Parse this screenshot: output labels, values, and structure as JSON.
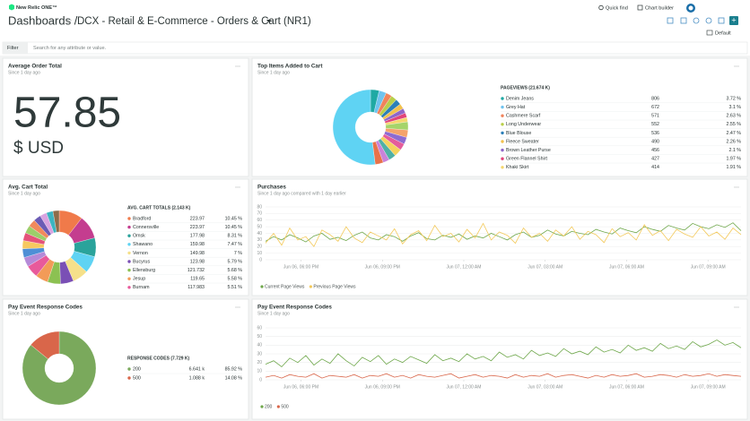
{
  "header": {
    "logo": "New Relic ONE™",
    "breadcrumb": "Dashboards /",
    "title": "DCX - Retail & E-Commerce - Orders & Cart (NR1)",
    "quick_find": "Quick find",
    "chart_builder": "Chart builder",
    "time_picker": "Default"
  },
  "filter": {
    "button": "Filter",
    "placeholder": "Search for any attribute or value."
  },
  "widgets": [
    {
      "type": "billboard",
      "title": "Average Order Total",
      "subtitle": "Since 1 day ago",
      "value": 57.85,
      "unit": "$ USD"
    },
    {
      "type": "pie",
      "title": "Top Items Added to Cart",
      "subtitle": "Since 1 day ago",
      "table_header": "PAGEVIEWS (21.674 K)",
      "rows": [
        {
          "name": "Denim Jeans",
          "color": "#1fa9a4",
          "value": 806,
          "percent": 3.72,
          "percent_label": "3.72 %"
        },
        {
          "name": "Grey Hat",
          "color": "#6fc3ee",
          "value": 672,
          "percent": 3.1,
          "percent_label": "3.1 %"
        },
        {
          "name": "Cashmere Scarf",
          "color": "#f0845c",
          "value": 571,
          "percent": 2.63,
          "percent_label": "2.63 %"
        },
        {
          "name": "Long Underwear",
          "color": "#b9cf4a",
          "value": 552,
          "percent": 2.55,
          "percent_label": "2.55 %"
        },
        {
          "name": "Blue Blouse",
          "color": "#2c7fb8",
          "value": 536,
          "percent": 2.47,
          "percent_label": "2.47 %"
        },
        {
          "name": "Fleece Sweater",
          "color": "#f2c14e",
          "value": 490,
          "percent": 2.26,
          "percent_label": "2.26 %"
        },
        {
          "name": "Brown Leather Purse",
          "color": "#8e67c9",
          "value": 456,
          "percent": 2.1,
          "percent_label": "2.1 %"
        },
        {
          "name": "Green Flannel Shirt",
          "color": "#e0457b",
          "value": 427,
          "percent": 1.97,
          "percent_label": "1.97 %"
        },
        {
          "name": "Khaki Skirt",
          "color": "#f5d76e",
          "value": 414,
          "percent": 1.91,
          "percent_label": "1.91 %"
        }
      ],
      "other_slices": [
        {
          "value": 3.5,
          "color": "#a5d46a"
        },
        {
          "value": 3.2,
          "color": "#f5a36b"
        },
        {
          "value": 3.0,
          "color": "#8d6bd1"
        },
        {
          "value": 2.9,
          "color": "#e45d9b"
        },
        {
          "value": 3.3,
          "color": "#f4d35e"
        },
        {
          "value": 3.1,
          "color": "#4fb0a5"
        },
        {
          "value": 2.8,
          "color": "#c983d9"
        },
        {
          "value": 3.49,
          "color": "#e8724a"
        },
        {
          "value": 52,
          "color": "#5fd3f3"
        }
      ]
    },
    {
      "type": "pie",
      "title": "Avg. Cart Total",
      "subtitle": "Since 1 day ago",
      "table_header": "AVG. CART TOTALS (2.143 K)",
      "rows": [
        {
          "name": "Bradford",
          "color": "#f07a4a",
          "value": 223.97,
          "percent": 10.45,
          "percent_label": "10.45 %"
        },
        {
          "name": "Connersville",
          "color": "#c43d8f",
          "value": 223.97,
          "percent": 10.45,
          "percent_label": "10.45 %"
        },
        {
          "name": "Omsk",
          "color": "#2aa39b",
          "value": 177.98,
          "percent": 8.31,
          "percent_label": "8.31 %"
        },
        {
          "name": "Shawano",
          "color": "#5fd3f3",
          "value": 159.98,
          "percent": 7.47,
          "percent_label": "7.47 %"
        },
        {
          "name": "Vernon",
          "color": "#f5e08a",
          "value": 149.98,
          "percent": 7,
          "percent_label": "7 %"
        },
        {
          "name": "Bucyrus",
          "color": "#7a4fb5",
          "value": 123.98,
          "percent": 5.79,
          "percent_label": "5.79 %"
        },
        {
          "name": "Ellensburg",
          "color": "#8cc152",
          "value": 121.732,
          "percent": 5.68,
          "percent_label": "5.68 %"
        },
        {
          "name": "Jesup",
          "color": "#f29b58",
          "value": 119.65,
          "percent": 5.58,
          "percent_label": "5.58 %"
        },
        {
          "name": "Burnam",
          "color": "#e85a9b",
          "value": 117.983,
          "percent": 5.51,
          "percent_label": "5.51 %"
        }
      ],
      "other_slices": [
        {
          "value": 4.2,
          "color": "#b58ad8"
        },
        {
          "value": 3.9,
          "color": "#4e8fd6"
        },
        {
          "value": 3.6,
          "color": "#f6c85f"
        },
        {
          "value": 3.5,
          "color": "#e4537a"
        },
        {
          "value": 3.4,
          "color": "#9ccf6a"
        },
        {
          "value": 3.3,
          "color": "#f08a5d"
        },
        {
          "value": 3.2,
          "color": "#6b5bb5"
        },
        {
          "value": 3.0,
          "color": "#d9a3e0"
        },
        {
          "value": 2.9,
          "color": "#3bb4c1"
        },
        {
          "value": 2.76,
          "color": "#8e6c4a"
        }
      ]
    },
    {
      "type": "line",
      "title": "Purchases",
      "subtitle": "Since 1 day ago compared with 1 day earlier",
      "ylim": [
        0,
        80
      ],
      "yticks": [
        0,
        10,
        20,
        30,
        40,
        50,
        60,
        70,
        80
      ],
      "xlim": [
        0,
        59
      ],
      "xticks": [
        {
          "value": 4.4,
          "label": "Jun 06, 06:00 PM"
        },
        {
          "value": 14.5,
          "label": "Jun 06, 09:00 PM"
        },
        {
          "value": 24.6,
          "label": "Jun 07, 12:00 AM"
        },
        {
          "value": 34.7,
          "label": "Jun 07, 03:00 AM"
        },
        {
          "value": 44.8,
          "label": "Jun 07, 06:00 AM"
        },
        {
          "value": 54.9,
          "label": "Jun 07, 09:00 AM"
        }
      ],
      "series": [
        {
          "name": "Current Page Views",
          "color": "#6ea74a",
          "values": [
            28,
            35,
            30,
            38,
            33,
            27,
            36,
            40,
            31,
            34,
            29,
            37,
            42,
            33,
            30,
            38,
            35,
            28,
            36,
            41,
            32,
            30,
            37,
            34,
            39,
            31,
            36,
            33,
            40,
            35,
            30,
            38,
            42,
            34,
            37,
            45,
            39,
            36,
            43,
            40,
            38,
            46,
            42,
            39,
            48,
            44,
            41,
            50,
            46,
            43,
            52,
            48,
            45,
            55,
            50,
            47,
            53,
            49,
            56,
            44
          ]
        },
        {
          "name": "Previous Page Views",
          "color": "#f3c95a",
          "values": [
            25,
            40,
            22,
            48,
            30,
            35,
            20,
            45,
            38,
            28,
            50,
            33,
            26,
            42,
            36,
            30,
            47,
            24,
            38,
            44,
            29,
            52,
            35,
            40,
            27,
            46,
            33,
            55,
            30,
            42,
            37,
            25,
            48,
            34,
            40,
            28,
            45,
            36,
            50,
            31,
            43,
            38,
            26,
            47,
            35,
            41,
            30,
            53,
            37,
            44,
            29,
            46,
            39,
            34,
            50,
            36,
            42,
            31,
            48,
            38
          ]
        }
      ]
    },
    {
      "type": "pie",
      "title": "Pay Event Response Codes",
      "subtitle": "Since 1 day ago",
      "table_header": "RESPONSE CODES (7.729 K)",
      "rows": [
        {
          "name": "200",
          "color": "#7aa95c",
          "value": 6641,
          "value_label": "6.641 k",
          "percent": 85.92,
          "percent_label": "85.92 %"
        },
        {
          "name": "500",
          "color": "#d9664a",
          "value": 1088,
          "value_label": "1.088 k",
          "percent": 14.08,
          "percent_label": "14.08 %"
        }
      ]
    },
    {
      "type": "line",
      "title": "Pay Event Response Codes",
      "subtitle": "Since 1 day ago",
      "ylim": [
        0,
        60
      ],
      "yticks": [
        0,
        10,
        20,
        30,
        40,
        50,
        60
      ],
      "xlim": [
        0,
        59
      ],
      "xticks": [
        {
          "value": 4.4,
          "label": "Jun 06, 06:00 PM"
        },
        {
          "value": 14.5,
          "label": "Jun 06, 09:00 PM"
        },
        {
          "value": 24.6,
          "label": "Jun 07, 12:00 AM"
        },
        {
          "value": 34.7,
          "label": "Jun 07, 03:00 AM"
        },
        {
          "value": 44.8,
          "label": "Jun 07, 06:00 AM"
        },
        {
          "value": 54.9,
          "label": "Jun 07, 09:00 AM"
        }
      ],
      "series": [
        {
          "name": "200",
          "color": "#6ea74a",
          "values": [
            18,
            22,
            15,
            25,
            20,
            28,
            17,
            24,
            19,
            30,
            22,
            16,
            26,
            21,
            28,
            18,
            24,
            20,
            27,
            23,
            19,
            29,
            22,
            25,
            21,
            30,
            24,
            27,
            22,
            32,
            26,
            29,
            24,
            34,
            28,
            31,
            27,
            36,
            30,
            33,
            29,
            38,
            32,
            35,
            31,
            40,
            34,
            37,
            33,
            42,
            36,
            39,
            35,
            44,
            38,
            41,
            46,
            40,
            43,
            37
          ]
        },
        {
          "name": "500",
          "color": "#d9664a",
          "values": [
            3,
            5,
            2,
            6,
            4,
            3,
            7,
            2,
            5,
            4,
            3,
            6,
            2,
            5,
            4,
            7,
            3,
            5,
            2,
            6,
            4,
            3,
            5,
            7,
            2,
            4,
            6,
            3,
            5,
            4,
            2,
            6,
            3,
            5,
            4,
            7,
            3,
            5,
            6,
            4,
            2,
            5,
            3,
            6,
            4,
            5,
            7,
            3,
            4,
            6,
            5,
            3,
            6,
            4,
            5,
            7,
            4,
            6,
            5,
            4
          ]
        }
      ]
    }
  ]
}
